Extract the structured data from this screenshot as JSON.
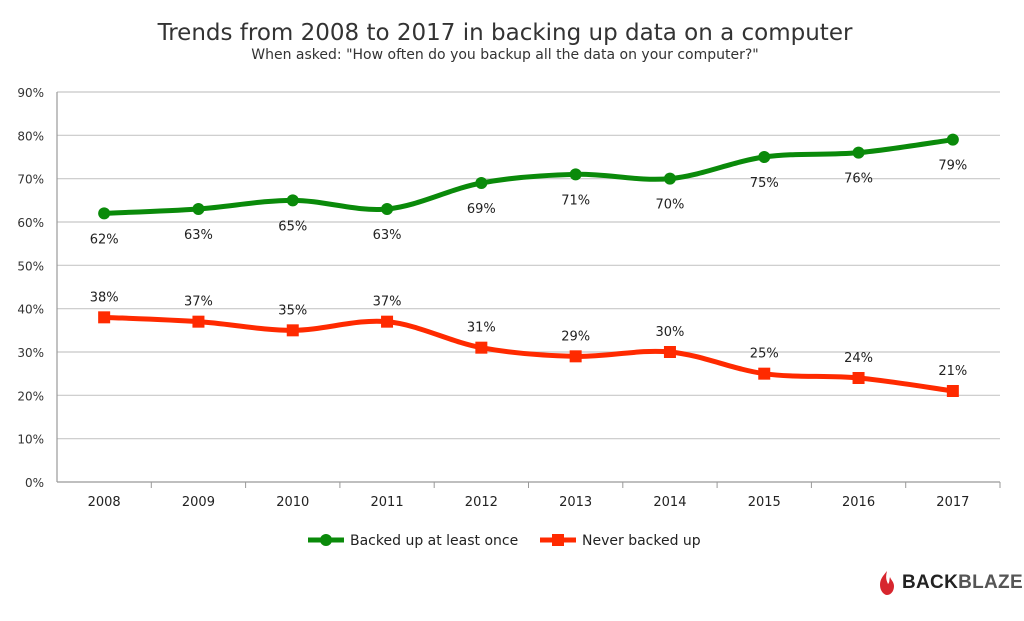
{
  "chart_data": {
    "type": "line",
    "title": "Trends from 2008 to 2017 in backing up data on a computer",
    "subtitle": "When asked: \"How often do you backup all the data on your computer?\"",
    "categories": [
      "2008",
      "2009",
      "2010",
      "2011",
      "2012",
      "2013",
      "2014",
      "2015",
      "2016",
      "2017"
    ],
    "ylim": [
      0,
      90
    ],
    "yticks": [
      "0%",
      "10%",
      "20%",
      "30%",
      "40%",
      "50%",
      "60%",
      "70%",
      "80%",
      "90%"
    ],
    "grid": true,
    "legend_position": "bottom",
    "series": [
      {
        "name": "Backed up at least once",
        "color": "#0a8a0a",
        "marker": "circle",
        "label_position": "below",
        "values": [
          62,
          63,
          65,
          63,
          69,
          71,
          70,
          75,
          76,
          79
        ]
      },
      {
        "name": "Never backed up",
        "color": "#ff2a00",
        "marker": "square",
        "label_position": "above",
        "values": [
          38,
          37,
          35,
          37,
          31,
          29,
          30,
          25,
          24,
          21
        ]
      }
    ]
  },
  "logo": {
    "text_dark": "BACK",
    "text_light": "BLAZE"
  }
}
